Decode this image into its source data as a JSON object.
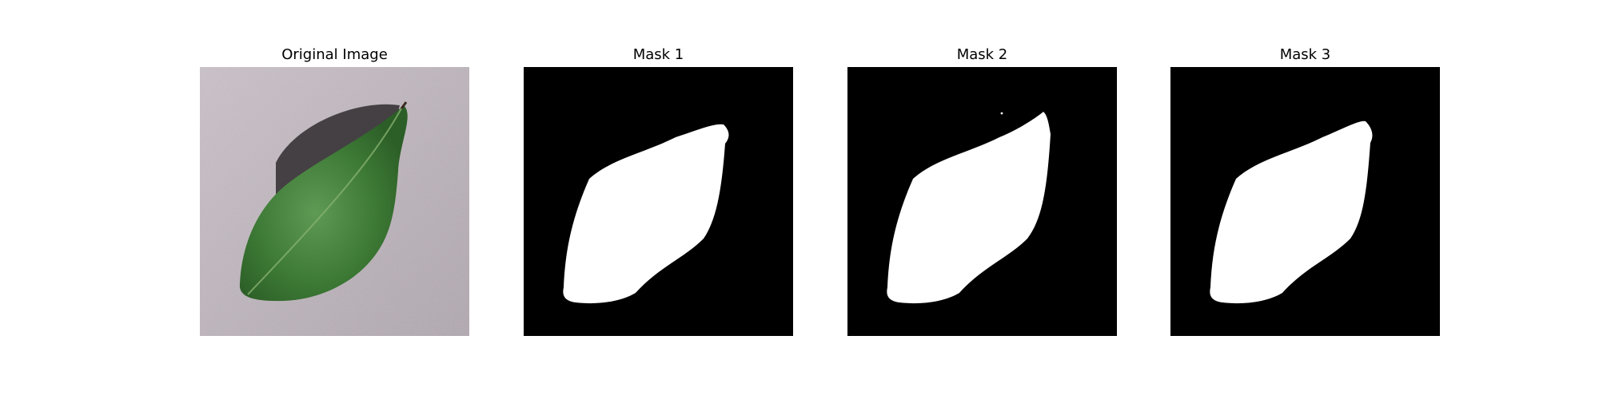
{
  "figure": {
    "panels": [
      {
        "title": "Original Image",
        "kind": "photo"
      },
      {
        "title": "Mask 1",
        "kind": "mask"
      },
      {
        "title": "Mask 2",
        "kind": "mask"
      },
      {
        "title": "Mask 3",
        "kind": "mask"
      }
    ]
  },
  "colors": {
    "background": "#ffffff",
    "mask_background": "#000000",
    "mask_foreground": "#ffffff",
    "surface": "#bab0b6",
    "leaf": "#3d7a35",
    "leaf_dark": "#2c5e27",
    "shadow": "#2e2a2e"
  }
}
